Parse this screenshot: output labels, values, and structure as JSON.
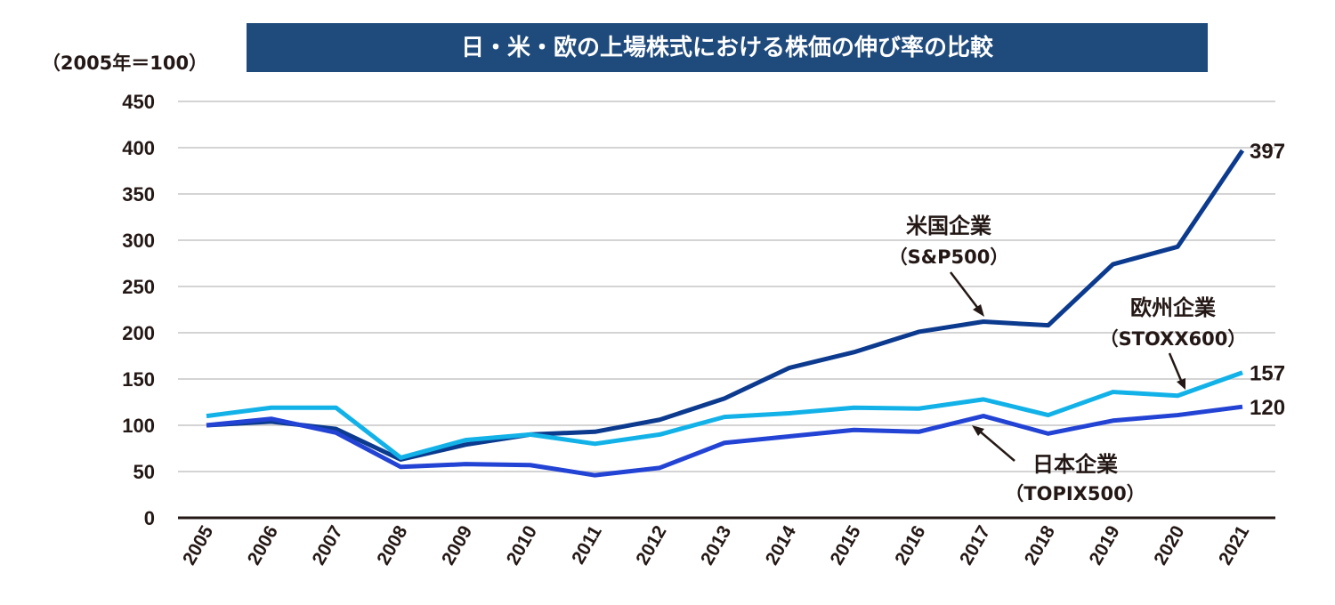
{
  "chart_data": {
    "type": "line",
    "title": "日・米・欧の上場株式における株価の伸び率の比較",
    "unit_label": "（2005年＝100）",
    "xlabel": "",
    "ylabel": "",
    "ylim": [
      0,
      450
    ],
    "yticks": [
      0,
      50,
      100,
      150,
      200,
      250,
      300,
      350,
      400,
      450
    ],
    "ytick_labels": [
      "0",
      "50",
      "100",
      "150",
      "200",
      "250",
      "300",
      "350",
      "400",
      "450"
    ],
    "grid": true,
    "categories": [
      "2005",
      "2006",
      "2007",
      "2008",
      "2009",
      "2010",
      "2011",
      "2012",
      "2013",
      "2014",
      "2015",
      "2016",
      "2017",
      "2018",
      "2019",
      "2020",
      "2021"
    ],
    "series": [
      {
        "id": "sp500",
        "name": "米国企業",
        "sub": "（S&P500）",
        "color": "#0b3a8e",
        "values": [
          100,
          104,
          96,
          63,
          79,
          90,
          93,
          106,
          129,
          162,
          179,
          201,
          212,
          208,
          274,
          293,
          397
        ],
        "end_label": "397",
        "annotation_year": "2017"
      },
      {
        "id": "stoxx600",
        "name": "欧州企業",
        "sub": "（STOXX600）",
        "color": "#12b2e8",
        "values": [
          110,
          119,
          119,
          65,
          84,
          90,
          80,
          90,
          109,
          113,
          119,
          118,
          128,
          111,
          136,
          132,
          157
        ],
        "end_label": "157",
        "annotation_year": "2020"
      },
      {
        "id": "topix500",
        "name": "日本企業",
        "sub": "（TOPIX500）",
        "color": "#2343d4",
        "values": [
          100,
          107,
          92,
          55,
          58,
          57,
          46,
          54,
          81,
          88,
          95,
          93,
          110,
          91,
          105,
          111,
          120
        ],
        "end_label": "120",
        "annotation_year": "2017"
      }
    ]
  }
}
